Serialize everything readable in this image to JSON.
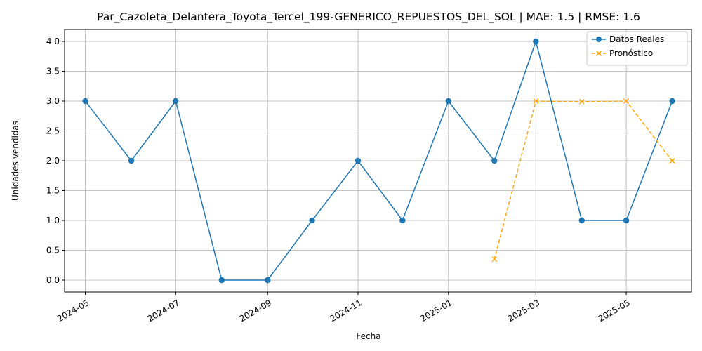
{
  "chart_data": {
    "type": "line",
    "title": "Par_Cazoleta_Delantera_Toyota_Tercel_199-GENERICO_REPUESTOS_DEL_SOL | MAE: 1.5 | RMSE: 1.6",
    "xlabel": "Fecha",
    "ylabel": "Unidades vendidas",
    "xlim": [
      "2024-04-17",
      "2025-06-14"
    ],
    "ylim": [
      -0.2,
      4.2
    ],
    "x_ticks": [
      "2024-05-01",
      "2024-07-01",
      "2024-09-01",
      "2024-11-01",
      "2025-01-01",
      "2025-03-01",
      "2025-05-01"
    ],
    "x_tick_labels": [
      "2024-05",
      "2024-07",
      "2024-09",
      "2024-11",
      "2025-01",
      "2025-03",
      "2025-05"
    ],
    "y_ticks": [
      0.0,
      0.5,
      1.0,
      1.5,
      2.0,
      2.5,
      3.0,
      3.5,
      4.0
    ],
    "y_tick_labels": [
      "0.0",
      "0.5",
      "1.0",
      "1.5",
      "2.0",
      "2.5",
      "3.0",
      "3.5",
      "4.0"
    ],
    "grid": true,
    "legend_position": "top-right",
    "series": [
      {
        "name": "Datos Reales",
        "color": "#1f77b4",
        "line_style": "solid",
        "marker": "circle",
        "x": [
          "2024-05-01",
          "2024-06-01",
          "2024-07-01",
          "2024-08-01",
          "2024-09-01",
          "2024-10-01",
          "2024-11-01",
          "2024-12-01",
          "2025-01-01",
          "2025-02-01",
          "2025-03-01",
          "2025-04-01",
          "2025-05-01",
          "2025-06-01"
        ],
        "values": [
          3,
          2,
          3,
          0,
          0,
          1,
          2,
          1,
          3,
          2,
          4,
          1,
          1,
          3
        ]
      },
      {
        "name": "Pronóstico",
        "color": "#ffa500",
        "line_style": "dashed",
        "marker": "x",
        "x": [
          "2025-02-01",
          "2025-03-01",
          "2025-04-01",
          "2025-05-01",
          "2025-06-01"
        ],
        "values": [
          0.35,
          3.0,
          2.99,
          3.0,
          2.0
        ]
      }
    ]
  }
}
